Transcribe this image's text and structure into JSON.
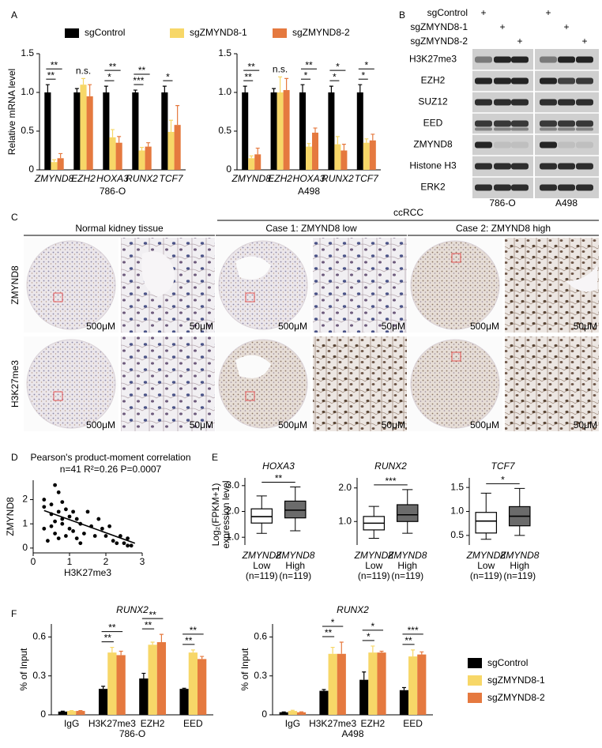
{
  "panel_letters": [
    "A",
    "B",
    "C",
    "D",
    "E",
    "F"
  ],
  "chart_data": [
    {
      "type": "bar",
      "x_label": "786-O",
      "y_label": "Relative mRNA level",
      "italic_categories": true,
      "legend": "top",
      "categories": [
        "ZMYND8",
        "EZH2",
        "HOXA3",
        "RUNX2",
        "TCF7"
      ],
      "series": [
        {
          "name": "sgControl",
          "color": "#000000",
          "values": [
            1,
            1,
            1,
            1,
            1
          ],
          "errors": [
            0.1,
            0.05,
            0.08,
            0.03,
            0.08
          ]
        },
        {
          "name": "sgZMYND8-1",
          "color": "#f7d768",
          "values": [
            0.1,
            1.1,
            0.42,
            0.25,
            0.49
          ],
          "errors": [
            0.03,
            0.08,
            0.1,
            0.04,
            0.15
          ]
        },
        {
          "name": "sgZMYND8-2",
          "color": "#e5793f",
          "values": [
            0.15,
            0.95,
            0.35,
            0.3,
            0.58
          ],
          "errors": [
            0.06,
            0.15,
            0.08,
            0.05,
            0.25
          ]
        }
      ],
      "ylim": [
        0,
        1.5
      ],
      "yticks": [
        0,
        0.5,
        {
          "value": 1,
          "label": "1.0"
        },
        1.5
      ],
      "significance": [
        [
          "**",
          "**"
        ],
        "n.s.",
        [
          "*",
          "**"
        ],
        [
          "***",
          "**"
        ],
        [
          "*"
        ]
      ]
    },
    {
      "type": "bar",
      "x_label": "A498",
      "italic_categories": true,
      "categories": [
        "ZMYND8",
        "EZH2",
        "HOXA3",
        "RUNX2",
        "TCF7"
      ],
      "series": [
        {
          "name": "sgControl",
          "color": "#000000",
          "values": [
            1,
            1,
            1,
            1,
            1
          ],
          "errors": [
            0.08,
            0.05,
            0.1,
            0.08,
            0.1
          ]
        },
        {
          "name": "sgZMYND8-1",
          "color": "#f7d768",
          "values": [
            0.15,
            1.0,
            0.3,
            0.33,
            0.35
          ],
          "errors": [
            0.03,
            0.2,
            0.04,
            0.1,
            0.05
          ]
        },
        {
          "name": "sgZMYND8-2",
          "color": "#e5793f",
          "values": [
            0.2,
            1.03,
            0.48,
            0.25,
            0.38
          ],
          "errors": [
            0.08,
            0.15,
            0.06,
            0.08,
            0.08
          ]
        }
      ],
      "ylim": [
        0,
        1.5
      ],
      "yticks": [
        0,
        0.5,
        {
          "value": 1,
          "label": "1.0"
        },
        1.5
      ],
      "significance": [
        [
          "**",
          "**"
        ],
        "n.s.",
        [
          "*",
          "**"
        ],
        [
          "*",
          "*"
        ],
        [
          "*",
          "*"
        ]
      ]
    },
    {
      "type": "scatter",
      "title": "Pearson's product-moment correlation",
      "subtitle": "n=41 R²=0.26 P=0.0007",
      "x_label": "H3K27me3",
      "y_label": "ZMYND8",
      "color": "#000000",
      "x": [
        0.3,
        0.3,
        0.3,
        0.5,
        0.5,
        0.5,
        0.6,
        0.6,
        0.6,
        0.7,
        0.7,
        0.7,
        0.8,
        0.8,
        0.8,
        0.9,
        0.9,
        1.0,
        1.0,
        1.1,
        1.1,
        1.2,
        1.2,
        1.3,
        1.4,
        1.5,
        1.6,
        1.7,
        1.8,
        1.9,
        2.0,
        2.1,
        2.2,
        2.3,
        2.4,
        2.5,
        2.6,
        2.6,
        2.7,
        1.3,
        0.4
      ],
      "y": [
        2.0,
        1.7,
        0.8,
        1.8,
        1.4,
        0.9,
        2.6,
        1.1,
        0.6,
        2.3,
        1.5,
        0.4,
        1.9,
        1.2,
        1.0,
        1.6,
        0.5,
        1.3,
        0.8,
        1.5,
        0.7,
        1.2,
        0.4,
        1.0,
        0.6,
        1.5,
        0.9,
        0.5,
        1.2,
        0.8,
        0.5,
        0.9,
        0.3,
        0.2,
        0.5,
        0.2,
        0.1,
        0.4,
        0.1,
        0.2,
        0.3
      ],
      "xlim": [
        0,
        3
      ],
      "xticks": [
        0,
        1,
        2,
        3
      ],
      "ylim": [
        -0.2,
        2.8
      ],
      "yticks": [
        0,
        1,
        2
      ],
      "trendline": {
        "x": [
          0.3,
          2.8
        ],
        "y": [
          1.55,
          0.2
        ]
      }
    },
    {
      "type": "box",
      "title": "HOXA3",
      "y_label": [
        "Log₂(FPKM+1)",
        "expression level"
      ],
      "categories": [
        [
          "ZMYND8",
          "Low",
          "(n=119)"
        ],
        [
          "ZMYND8",
          "High",
          "(n=119)"
        ]
      ],
      "boxes": [
        {
          "color": "#ffffff",
          "min": 1.15,
          "q1": 1.55,
          "median": 1.8,
          "q3": 2.1,
          "max": 2.6
        },
        {
          "color": "#6b6b6b",
          "min": 1.25,
          "q1": 1.75,
          "median": 2.05,
          "q3": 2.4,
          "max": 2.95
        }
      ],
      "ylim": [
        0.7,
        3.3
      ],
      "yticks": [
        {
          "value": 1,
          "label": "1.0"
        },
        {
          "value": 2,
          "label": "2.0"
        },
        {
          "value": 3,
          "label": "3.0"
        }
      ],
      "significance": "**"
    },
    {
      "type": "box",
      "title": "RUNX2",
      "categories": [
        [
          "ZMYND8",
          "Low",
          "(n=119)"
        ],
        [
          "ZMYND8",
          "High",
          "(n=119)"
        ]
      ],
      "boxes": [
        {
          "color": "#ffffff",
          "min": 0.5,
          "q1": 0.75,
          "median": 0.95,
          "q3": 1.15,
          "max": 1.45
        },
        {
          "color": "#6b6b6b",
          "min": 0.65,
          "q1": 1.0,
          "median": 1.2,
          "q3": 1.5,
          "max": 1.95
        }
      ],
      "ylim": [
        0.3,
        2.3
      ],
      "yticks": [
        {
          "value": 1,
          "label": "1.0"
        },
        {
          "value": 2,
          "label": "2.0"
        }
      ],
      "significance": "***"
    },
    {
      "type": "box",
      "title": "TCF7",
      "categories": [
        [
          "ZMYND8",
          "Low",
          "(n=119)"
        ],
        [
          "ZMYND8",
          "High",
          "(n=119)"
        ]
      ],
      "boxes": [
        {
          "color": "#ffffff",
          "min": 0.42,
          "q1": 0.55,
          "median": 0.8,
          "q3": 0.98,
          "max": 1.38
        },
        {
          "color": "#6b6b6b",
          "min": 0.5,
          "q1": 0.7,
          "median": 0.9,
          "q3": 1.1,
          "max": 1.48
        }
      ],
      "ylim": [
        0.3,
        1.7
      ],
      "yticks": [
        0.5,
        {
          "value": 1,
          "label": "1.0"
        },
        1.5
      ],
      "significance": "*"
    },
    {
      "type": "bar",
      "title": "RUNX2",
      "x_label": "786-O",
      "y_label": "% of Input",
      "categories": [
        "IgG",
        "H3K27me3",
        "EZH2",
        "EED"
      ],
      "series": [
        {
          "name": "sgControl",
          "color": "#000000",
          "values": [
            0.025,
            0.2,
            0.28,
            0.2
          ],
          "errors": [
            0.003,
            0.02,
            0.04,
            0.005
          ]
        },
        {
          "name": "sgZMYND8-1",
          "color": "#f7d768",
          "values": [
            0.03,
            0.48,
            0.54,
            0.48
          ],
          "errors": [
            0.003,
            0.04,
            0.02,
            0.02
          ]
        },
        {
          "name": "sgZMYND8-2",
          "color": "#e5793f",
          "values": [
            0.03,
            0.46,
            0.56,
            0.43
          ],
          "errors": [
            0.003,
            0.03,
            0.06,
            0.02
          ]
        }
      ],
      "ylim": [
        0,
        0.7
      ],
      "yticks": [
        0,
        0.3,
        0.6
      ],
      "significance": [
        null,
        [
          "**",
          "**"
        ],
        [
          "**",
          "**"
        ],
        [
          "**",
          "**"
        ]
      ]
    },
    {
      "type": "bar",
      "title": "RUNX2",
      "x_label": "A498",
      "y_label": "% of Input",
      "legend": "right",
      "categories": [
        "IgG",
        "H3K27me3",
        "EZH2",
        "EED"
      ],
      "series": [
        {
          "name": "sgControl",
          "color": "#000000",
          "values": [
            0.02,
            0.185,
            0.27,
            0.19
          ],
          "errors": [
            0.002,
            0.01,
            0.06,
            0.02
          ]
        },
        {
          "name": "sgZMYND8-1",
          "color": "#f7d768",
          "values": [
            0.03,
            0.47,
            0.48,
            0.45
          ],
          "errors": [
            0.005,
            0.05,
            0.05,
            0.05
          ]
        },
        {
          "name": "sgZMYND8-2",
          "color": "#e5793f",
          "values": [
            0.02,
            0.47,
            0.48,
            0.465
          ],
          "errors": [
            0.003,
            0.09,
            0.01,
            0.02
          ]
        }
      ],
      "ylim": [
        0,
        0.7
      ],
      "yticks": [
        0,
        0.3,
        0.6
      ],
      "significance": [
        null,
        [
          "**",
          "*"
        ],
        [
          "*",
          "*"
        ],
        [
          "**",
          "***"
        ]
      ]
    }
  ],
  "panel_b": {
    "conditions": [
      "sgControl",
      "sgZMYND8-1",
      "sgZMYND8-2"
    ],
    "mark": "+",
    "proteins": [
      "H3K27me3",
      "EZH2",
      "SUZ12",
      "EED",
      "ZMYND8",
      "Histone H3",
      "ERK2"
    ],
    "cell_lines": [
      "786-O",
      "A498"
    ]
  },
  "panel_c": {
    "group": "ccRCC",
    "columns": [
      "Normal kidney tissue",
      "Case 1: ZMYND8 low",
      "Case 2: ZMYND8 high"
    ],
    "rows": [
      "ZMYND8",
      "H3K27me3"
    ],
    "scale_bar": "500μM",
    "zoom_scale_bar": "50μM"
  }
}
